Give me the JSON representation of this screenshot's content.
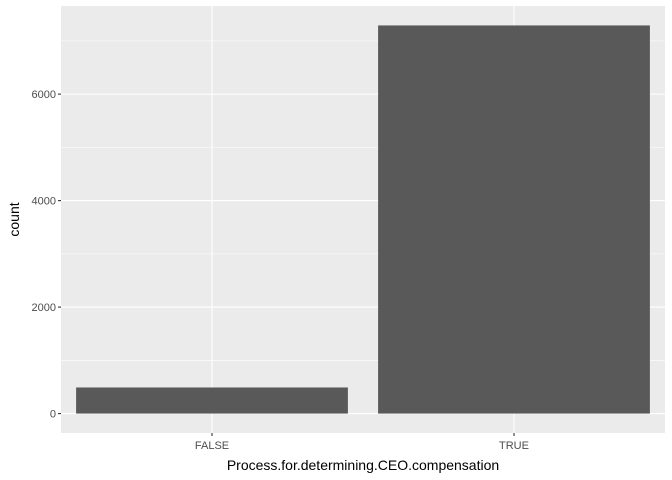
{
  "chart_data": {
    "type": "bar",
    "categories": [
      "FALSE",
      "TRUE"
    ],
    "values": [
      490,
      7290
    ],
    "xlabel": "Process.for.determining.CEO.compensation",
    "ylabel": "count",
    "ylim": [
      -365,
      7655
    ],
    "yticks": [
      0,
      2000,
      4000,
      6000
    ],
    "ytick_labels": [
      "0",
      "2000",
      "4000",
      "6000"
    ],
    "grid": true,
    "colors": {
      "panel_background": "#ebebeb",
      "grid_major": "#ffffff",
      "bar_fill": "#595959",
      "tick_text": "#4d4d4d",
      "axis_title_text": "#000000"
    }
  }
}
